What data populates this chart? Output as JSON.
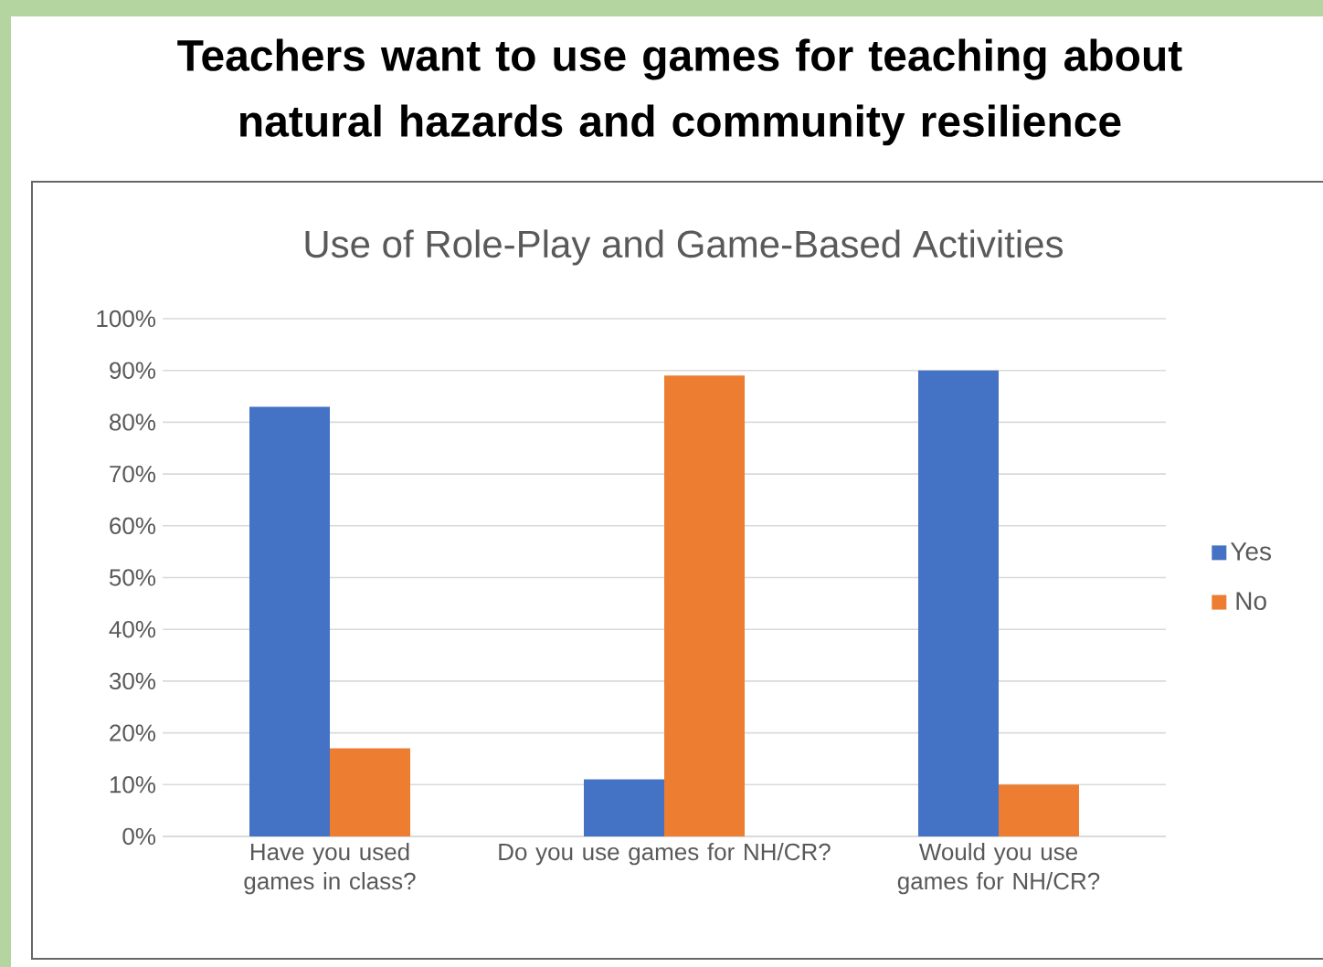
{
  "chart_data": {
    "type": "bar",
    "title": "Teachers want to use games for teaching about natural hazards and community resilience",
    "subtitle": "Use of Role-Play and Game-Based Activities",
    "categories": [
      "Have you used games in class?",
      "Do you use games for NH/CR?",
      "Would you use games for NH/CR?"
    ],
    "series": [
      {
        "name": "Yes",
        "color": "#4472c4",
        "values": [
          83,
          11,
          90
        ]
      },
      {
        "name": "No",
        "color": "#ed7d31",
        "values": [
          17,
          89,
          10
        ]
      }
    ],
    "ylim": [
      0,
      100
    ],
    "yticks": [
      {
        "value": 0,
        "label": "0%"
      },
      {
        "value": 10,
        "label": "10%"
      },
      {
        "value": 20,
        "label": "20%"
      },
      {
        "value": 30,
        "label": "30%"
      },
      {
        "value": 40,
        "label": "40%"
      },
      {
        "value": 50,
        "label": "50%"
      },
      {
        "value": 60,
        "label": "60%"
      },
      {
        "value": 70,
        "label": "70%"
      },
      {
        "value": 80,
        "label": "80%"
      },
      {
        "value": 90,
        "label": "90%"
      },
      {
        "value": 100,
        "label": "100%"
      }
    ],
    "grid": "y",
    "legend": "right"
  }
}
